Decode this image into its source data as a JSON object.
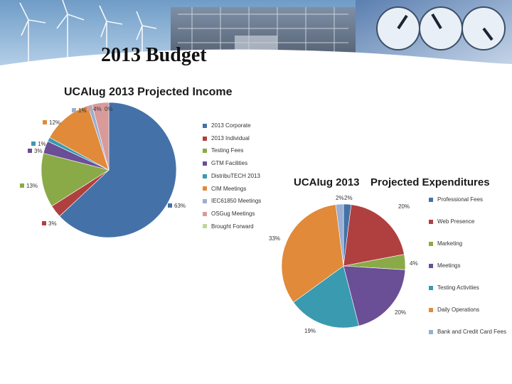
{
  "slide": {
    "title": "2013 Budget",
    "banner_images": [
      "wind-turbine-icon",
      "substation-icon",
      "meter-dial-icon"
    ]
  },
  "chart_data": [
    {
      "type": "pie",
      "title": "UCAIug 2013 Projected Income",
      "legend_position": "right",
      "slices": [
        {
          "label": "2013 Corporate",
          "value": 63,
          "value_label": "63%",
          "color": "#4472a8"
        },
        {
          "label": "2013 Individual",
          "value": 3,
          "value_label": "3%",
          "color": "#b04040"
        },
        {
          "label": "Testing Fees",
          "value": 13,
          "value_label": "13%",
          "color": "#8aaa48"
        },
        {
          "label": "GTM Facilities",
          "value": 3,
          "value_label": "3%",
          "color": "#6a4e96"
        },
        {
          "label": "DistribuTECH 2013",
          "value": 1,
          "value_label": "1%",
          "color": "#3a9ab0"
        },
        {
          "label": "CIM Meetings",
          "value": 12,
          "value_label": "12%",
          "color": "#e08a3a"
        },
        {
          "label": "IEC61850 Meetings",
          "value": 1,
          "value_label": "1%",
          "color": "#9aaed0"
        },
        {
          "label": "OSGug Meetings",
          "value": 4,
          "value_label": "4%",
          "color": "#d99a9a"
        },
        {
          "label": "Brought Forward",
          "value": 0,
          "value_label": "0%",
          "color": "#c2d69a"
        }
      ]
    },
    {
      "type": "pie",
      "title": "UCAIug 2013 Projected Expenditures",
      "title_parts": [
        "UCAIug 2013",
        "Projected Expenditures"
      ],
      "legend_position": "right",
      "slices": [
        {
          "label": "Professional Fees",
          "value": 2,
          "value_label": "2%",
          "color": "#4472a8"
        },
        {
          "label": "Web Presence",
          "value": 20,
          "value_label": "20%",
          "color": "#b04040"
        },
        {
          "label": "Marketing",
          "value": 4,
          "value_label": "4%",
          "color": "#8aaa48"
        },
        {
          "label": "Meetings",
          "value": 20,
          "value_label": "20%",
          "color": "#6a4e96"
        },
        {
          "label": "Testing Activities",
          "value": 19,
          "value_label": "19%",
          "color": "#3a9ab0"
        },
        {
          "label": "Daily Operations",
          "value": 33,
          "value_label": "33%",
          "color": "#e08a3a"
        },
        {
          "label": "Bank and Credit Card Fees",
          "value": 2,
          "value_label": "2%",
          "color": "#9aaed0"
        }
      ]
    }
  ]
}
